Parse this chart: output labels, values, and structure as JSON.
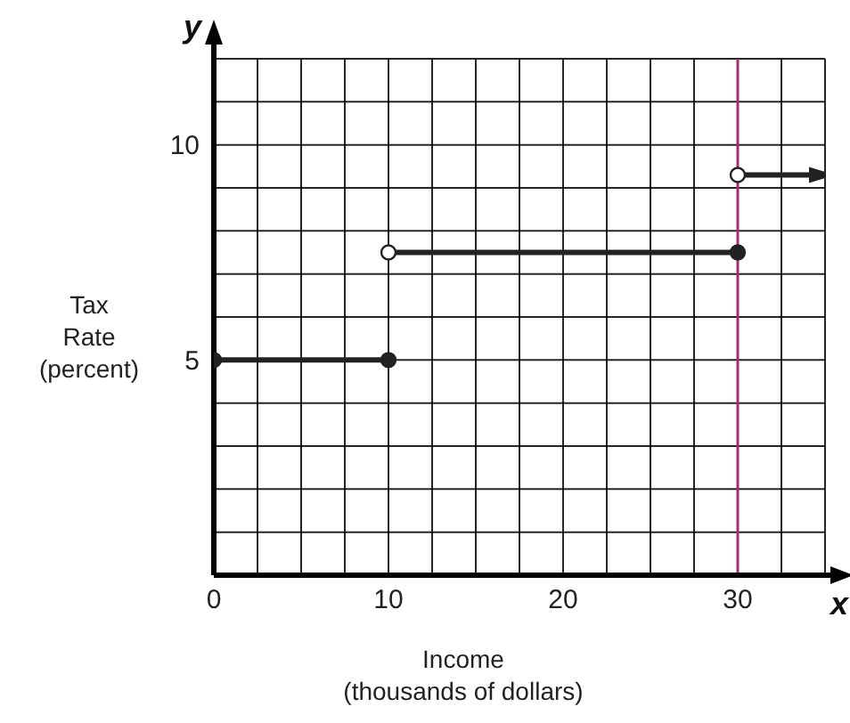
{
  "chart_data": {
    "type": "line",
    "xlabel": "Income (thousands of dollars)",
    "ylabel": "Tax Rate (percent)",
    "annotations": [
      "y",
      "x"
    ],
    "series": [
      {
        "color": "#222222",
        "x": [
          0,
          10
        ],
        "values": [
          5,
          5
        ]
      },
      {
        "color": "#222222",
        "x": [
          10,
          30
        ],
        "values": [
          7.5,
          7.5
        ]
      },
      {
        "color": "#222222",
        "x": [
          30,
          35
        ],
        "values": [
          9.3,
          9.3
        ]
      }
    ],
    "xlim": [
      0,
      35
    ],
    "ylim": [
      0,
      12
    ],
    "xticks": [
      {
        "value": 0,
        "label": "0"
      },
      {
        "value": 2.5,
        "label": null
      },
      {
        "value": 5,
        "label": null
      },
      {
        "value": 7.5,
        "label": null
      },
      10,
      {
        "value": 12.5,
        "label": null
      },
      {
        "value": 15,
        "label": null
      },
      {
        "value": 17.5,
        "label": null
      },
      20,
      {
        "value": 22.5,
        "label": null
      },
      {
        "value": 25,
        "label": null
      },
      {
        "value": 27.5,
        "label": null
      },
      30,
      {
        "value": 32.5,
        "label": null
      },
      {
        "value": 35,
        "label": null
      }
    ],
    "yticks": [
      {
        "value": 0,
        "label": null
      },
      {
        "value": 1,
        "label": null
      },
      {
        "value": 2,
        "label": null
      },
      {
        "value": 3,
        "label": null
      },
      {
        "value": 4,
        "label": null
      },
      5,
      {
        "value": 6,
        "label": null
      },
      {
        "value": 7,
        "label": null
      },
      {
        "value": 8,
        "label": null
      },
      {
        "value": 9,
        "label": null
      },
      10,
      {
        "value": 11,
        "label": null
      },
      {
        "value": 12,
        "label": null
      }
    ],
    "ref_lines": [
      {
        "axis": "x",
        "value": 30,
        "color": "#a3306e"
      }
    ],
    "grid": true,
    "marker": "circle"
  }
}
